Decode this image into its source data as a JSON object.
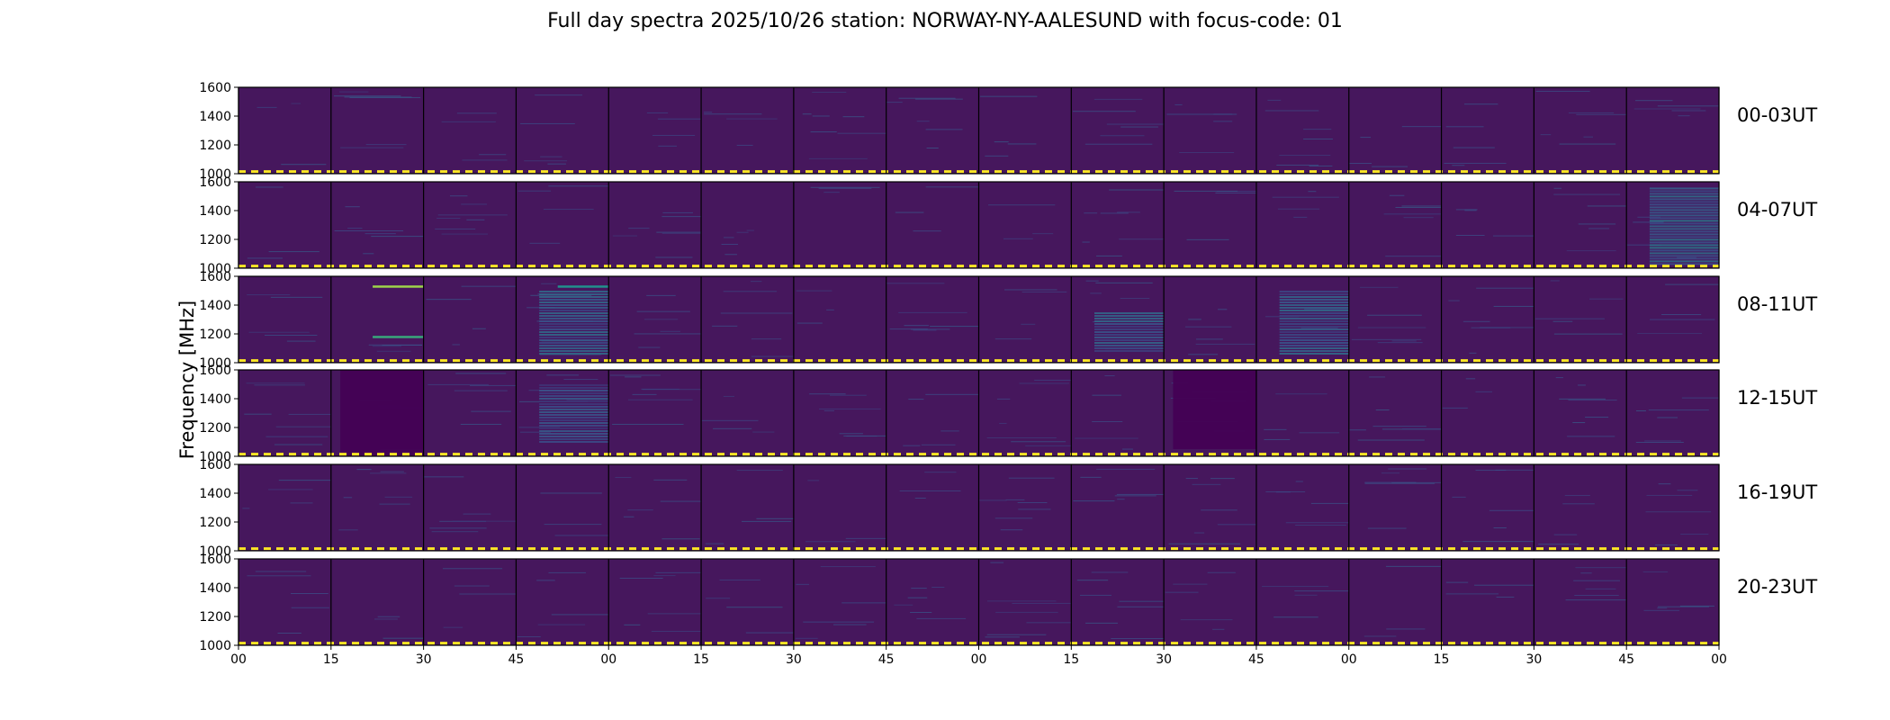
{
  "chart_data": {
    "type": "heatmap",
    "title": "Full day spectra 2025/10/26 station: NORWAY-NY-AALESUND with focus-code: 01",
    "ylabel": "Frequency [MHz]",
    "xlabel": "",
    "ylim": [
      1000,
      1600
    ],
    "yticks": [
      "1600",
      "1400",
      "1200",
      "1000"
    ],
    "xticks": [
      "00",
      "15",
      "30",
      "45",
      "00",
      "15",
      "30",
      "45",
      "00",
      "15",
      "30",
      "45",
      "00",
      "15",
      "30",
      "45",
      "00"
    ],
    "minutes_per_panel": 15,
    "panels_per_row": 16,
    "rows": [
      {
        "label": "00-03UT",
        "hours": "00-03"
      },
      {
        "label": "04-07UT",
        "hours": "04-07"
      },
      {
        "label": "08-11UT",
        "hours": "08-11"
      },
      {
        "label": "12-15UT",
        "hours": "12-15"
      },
      {
        "label": "16-19UT",
        "hours": "16-19"
      },
      {
        "label": "20-23UT",
        "hours": "20-23"
      }
    ],
    "colormap": "viridis",
    "background_color": "#46175d",
    "reference_line": {
      "frequency_mhz": 1015,
      "color": "#fde725",
      "style": "dashed"
    },
    "features": [
      {
        "row": 1,
        "panel": 15,
        "freq_range": [
          1020,
          1560
        ],
        "intensity": 0.35,
        "kind": "broadband"
      },
      {
        "row": 2,
        "panel": 1,
        "freq": 1530,
        "intensity": 0.85,
        "kind": "line"
      },
      {
        "row": 2,
        "panel": 1,
        "freq": 1180,
        "intensity": 0.6,
        "kind": "line"
      },
      {
        "row": 2,
        "panel": 3,
        "freq": 1530,
        "intensity": 0.5,
        "kind": "line"
      },
      {
        "row": 2,
        "panel": 3,
        "freq_range": [
          1050,
          1500
        ],
        "intensity": 0.3,
        "kind": "broadband"
      },
      {
        "row": 2,
        "panel": 9,
        "freq_range": [
          1080,
          1350
        ],
        "intensity": 0.3,
        "kind": "broadband"
      },
      {
        "row": 2,
        "panel": 11,
        "freq_range": [
          1050,
          1500
        ],
        "intensity": 0.3,
        "kind": "broadband"
      },
      {
        "row": 3,
        "panel": 1,
        "freq_range": [
          1000,
          1600
        ],
        "intensity": 0.0,
        "kind": "dropout"
      },
      {
        "row": 3,
        "panel": 3,
        "freq_range": [
          1100,
          1500
        ],
        "intensity": 0.25,
        "kind": "broadband"
      },
      {
        "row": 3,
        "panel": 10,
        "freq_range": [
          1050,
          1600
        ],
        "intensity": 0.0,
        "kind": "dropout"
      }
    ]
  }
}
